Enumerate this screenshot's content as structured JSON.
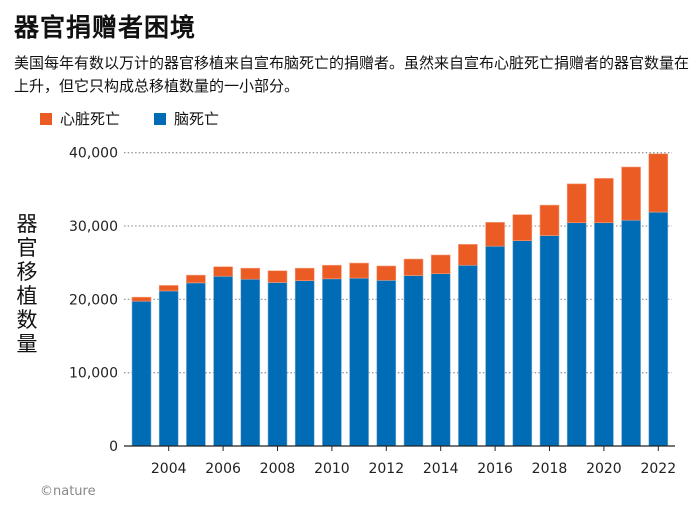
{
  "title": "器官捐赠者困境",
  "subtitle": "美国每年有数以万计的器官移植来自宣布脑死亡的捐赠者。虽然来自宣布心脏死亡捐赠者的器官数量在上升，但它只构成总移植数量的一小部分。",
  "footer": "©nature",
  "chart_data": {
    "type": "bar",
    "stacked": true,
    "ylabel": "器官移植数量",
    "xlabel": "",
    "ylim": [
      0,
      40000
    ],
    "yticks": [
      0,
      10000,
      20000,
      30000,
      40000
    ],
    "ytick_labels": [
      "0",
      "10,000",
      "20,000",
      "30,000",
      "40,000"
    ],
    "xtick_labels": [
      "2004",
      "2006",
      "2008",
      "2010",
      "2012",
      "2014",
      "2016",
      "2018",
      "2020",
      "2022"
    ],
    "grid": true,
    "legend_position": "top-left",
    "categories": [
      2003,
      2004,
      2005,
      2006,
      2007,
      2008,
      2009,
      2010,
      2011,
      2012,
      2013,
      2014,
      2015,
      2016,
      2017,
      2018,
      2019,
      2020,
      2021,
      2022
    ],
    "series": [
      {
        "name": "脑死亡",
        "color": "#006cb5",
        "values": [
          19750,
          21150,
          22250,
          23150,
          22750,
          22300,
          22550,
          22800,
          22900,
          22600,
          23250,
          23500,
          24650,
          27250,
          28000,
          28700,
          30450,
          30450,
          30800,
          31900
        ]
      },
      {
        "name": "心脏死亡",
        "color": "#eb5b24",
        "values": [
          550,
          750,
          1050,
          1300,
          1500,
          1600,
          1700,
          1850,
          2050,
          1950,
          2250,
          2550,
          2850,
          3250,
          3550,
          4150,
          5300,
          6050,
          7250,
          7950
        ]
      }
    ]
  }
}
